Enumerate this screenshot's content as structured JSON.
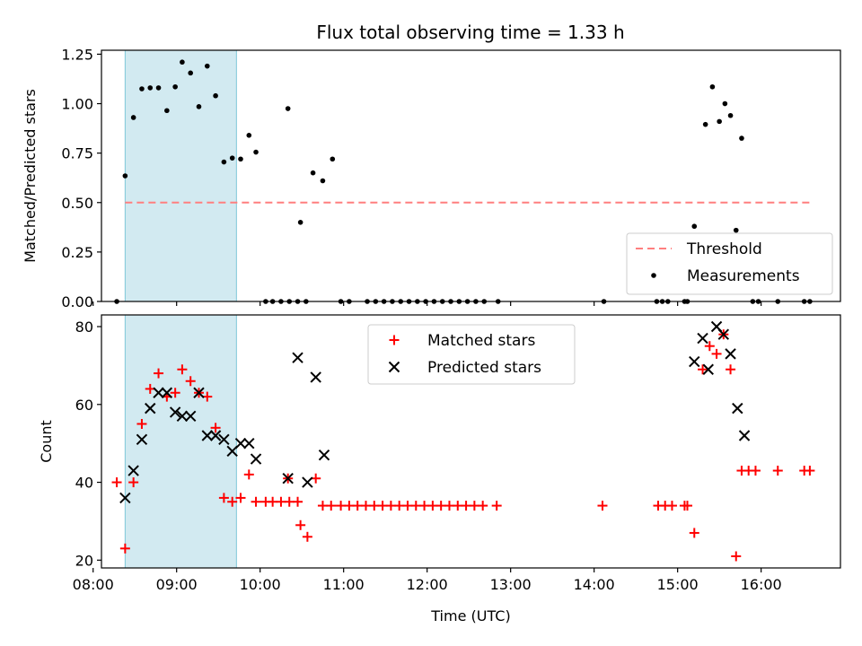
{
  "figure": {
    "title": "Flux total observing time = 1.33 h"
  },
  "chart_data": [
    {
      "type": "scatter",
      "panel": "top",
      "ylabel": "Matched/Predicted stars",
      "xlabel": "",
      "xlim": [
        "08:06",
        "16:57"
      ],
      "ylim": [
        0,
        1.27
      ],
      "yticks": [
        0.0,
        0.25,
        0.5,
        0.75,
        1.0,
        1.25
      ],
      "ytick_labels": [
        "0.00",
        "0.25",
        "0.50",
        "0.75",
        "1.00",
        "1.25"
      ],
      "grid": false,
      "legend_position": "lower right",
      "shaded_interval": {
        "start": "08:23",
        "end": "09:43",
        "color": "#add8e6"
      },
      "threshold": {
        "name": "Threshold",
        "value": 0.5,
        "x_start": "08:23",
        "x_end": "16:35",
        "color": "#ff7f7f",
        "style": "dashed"
      },
      "series": [
        {
          "name": "Measurements",
          "marker": "dot",
          "color": "#000000",
          "points": [
            [
              "08:17",
              0.0
            ],
            [
              "08:23",
              0.635
            ],
            [
              "08:29",
              0.93
            ],
            [
              "08:35",
              1.075
            ],
            [
              "08:41",
              1.08
            ],
            [
              "08:47",
              1.08
            ],
            [
              "08:53",
              0.965
            ],
            [
              "08:59",
              1.085
            ],
            [
              "09:04",
              1.21
            ],
            [
              "09:10",
              1.155
            ],
            [
              "09:16",
              0.985
            ],
            [
              "09:22",
              1.19
            ],
            [
              "09:28",
              1.04
            ],
            [
              "09:34",
              0.705
            ],
            [
              "09:40",
              0.725
            ],
            [
              "09:46",
              0.72
            ],
            [
              "09:52",
              0.84
            ],
            [
              "09:57",
              0.755
            ],
            [
              "10:04",
              0.0
            ],
            [
              "10:09",
              0.0
            ],
            [
              "10:15",
              0.0
            ],
            [
              "10:21",
              0.0
            ],
            [
              "10:27",
              0.0
            ],
            [
              "10:33",
              0.0
            ],
            [
              "10:20",
              0.975
            ],
            [
              "10:29",
              0.4
            ],
            [
              "10:38",
              0.65
            ],
            [
              "10:45",
              0.61
            ],
            [
              "10:52",
              0.72
            ],
            [
              "10:58",
              0.0
            ],
            [
              "11:04",
              0.0
            ],
            [
              "11:17",
              0.0
            ],
            [
              "11:23",
              0.0
            ],
            [
              "11:29",
              0.0
            ],
            [
              "11:35",
              0.0
            ],
            [
              "11:41",
              0.0
            ],
            [
              "11:47",
              0.0
            ],
            [
              "11:53",
              0.0
            ],
            [
              "11:59",
              0.0
            ],
            [
              "12:05",
              0.0
            ],
            [
              "12:11",
              0.0
            ],
            [
              "12:17",
              0.0
            ],
            [
              "12:23",
              0.0
            ],
            [
              "12:29",
              0.0
            ],
            [
              "12:35",
              0.0
            ],
            [
              "12:41",
              0.0
            ],
            [
              "12:51",
              0.0
            ],
            [
              "14:07",
              0.0
            ],
            [
              "14:45",
              0.0
            ],
            [
              "14:49",
              0.0
            ],
            [
              "14:53",
              0.0
            ],
            [
              "15:05",
              0.0
            ],
            [
              "15:07",
              0.0
            ],
            [
              "15:12",
              0.38
            ],
            [
              "15:20",
              0.895
            ],
            [
              "15:25",
              1.085
            ],
            [
              "15:30",
              0.91
            ],
            [
              "15:34",
              1.0
            ],
            [
              "15:38",
              0.94
            ],
            [
              "15:42",
              0.36
            ],
            [
              "15:46",
              0.825
            ],
            [
              "15:54",
              0.0
            ],
            [
              "15:58",
              0.0
            ],
            [
              "16:12",
              0.0
            ],
            [
              "16:31",
              0.0
            ],
            [
              "16:35",
              0.0
            ]
          ]
        }
      ]
    },
    {
      "type": "scatter",
      "panel": "bottom",
      "ylabel": "Count",
      "xlabel": "Time (UTC)",
      "xlim": [
        "08:06",
        "16:57"
      ],
      "ylim": [
        18,
        83
      ],
      "yticks": [
        20,
        40,
        60,
        80
      ],
      "xticks": [
        "08:00",
        "09:00",
        "10:00",
        "11:00",
        "12:00",
        "13:00",
        "14:00",
        "15:00",
        "16:00"
      ],
      "grid": false,
      "legend_position": "upper center",
      "shaded_interval": {
        "start": "08:23",
        "end": "09:43",
        "color": "#add8e6"
      },
      "series": [
        {
          "name": "Matched stars",
          "marker": "plus",
          "color": "#ff0000",
          "points": [
            [
              "08:17",
              40
            ],
            [
              "08:23",
              23
            ],
            [
              "08:29",
              40
            ],
            [
              "08:35",
              55
            ],
            [
              "08:41",
              64
            ],
            [
              "08:47",
              68
            ],
            [
              "08:53",
              62
            ],
            [
              "08:59",
              63
            ],
            [
              "09:04",
              69
            ],
            [
              "09:10",
              66
            ],
            [
              "09:16",
              63
            ],
            [
              "09:22",
              62
            ],
            [
              "09:28",
              54
            ],
            [
              "09:34",
              36
            ],
            [
              "09:40",
              35
            ],
            [
              "09:46",
              36
            ],
            [
              "09:52",
              42
            ],
            [
              "09:57",
              35
            ],
            [
              "10:04",
              35
            ],
            [
              "10:09",
              35
            ],
            [
              "10:15",
              35
            ],
            [
              "10:21",
              35
            ],
            [
              "10:27",
              35
            ],
            [
              "10:20",
              41
            ],
            [
              "10:29",
              29
            ],
            [
              "10:34",
              26
            ],
            [
              "10:40",
              41
            ],
            [
              "10:45",
              34
            ],
            [
              "10:51",
              34
            ],
            [
              "10:58",
              34
            ],
            [
              "11:04",
              34
            ],
            [
              "11:10",
              34
            ],
            [
              "11:16",
              34
            ],
            [
              "11:22",
              34
            ],
            [
              "11:28",
              34
            ],
            [
              "11:34",
              34
            ],
            [
              "11:40",
              34
            ],
            [
              "11:46",
              34
            ],
            [
              "11:52",
              34
            ],
            [
              "11:58",
              34
            ],
            [
              "12:04",
              34
            ],
            [
              "12:10",
              34
            ],
            [
              "12:16",
              34
            ],
            [
              "12:22",
              34
            ],
            [
              "12:28",
              34
            ],
            [
              "12:34",
              34
            ],
            [
              "12:40",
              34
            ],
            [
              "12:50",
              34
            ],
            [
              "14:06",
              34
            ],
            [
              "14:46",
              34
            ],
            [
              "14:51",
              34
            ],
            [
              "14:56",
              34
            ],
            [
              "15:05",
              34
            ],
            [
              "15:07",
              34
            ],
            [
              "15:12",
              27
            ],
            [
              "15:18",
              69
            ],
            [
              "15:23",
              75
            ],
            [
              "15:28",
              73
            ],
            [
              "15:33",
              78
            ],
            [
              "15:38",
              69
            ],
            [
              "15:42",
              21
            ],
            [
              "15:46",
              43
            ],
            [
              "15:51",
              43
            ],
            [
              "15:56",
              43
            ],
            [
              "16:12",
              43
            ],
            [
              "16:31",
              43
            ],
            [
              "16:35",
              43
            ]
          ]
        },
        {
          "name": "Predicted stars",
          "marker": "x",
          "color": "#000000",
          "points": [
            [
              "08:23",
              36
            ],
            [
              "08:29",
              43
            ],
            [
              "08:35",
              51
            ],
            [
              "08:41",
              59
            ],
            [
              "08:47",
              63
            ],
            [
              "08:53",
              63
            ],
            [
              "08:59",
              58
            ],
            [
              "09:04",
              57
            ],
            [
              "09:10",
              57
            ],
            [
              "09:16",
              63
            ],
            [
              "09:22",
              52
            ],
            [
              "09:28",
              52
            ],
            [
              "09:34",
              51
            ],
            [
              "09:40",
              48
            ],
            [
              "09:46",
              50
            ],
            [
              "09:52",
              50
            ],
            [
              "09:57",
              46
            ],
            [
              "10:20",
              41
            ],
            [
              "10:27",
              72
            ],
            [
              "10:34",
              40
            ],
            [
              "10:40",
              67
            ],
            [
              "10:46",
              47
            ],
            [
              "15:12",
              71
            ],
            [
              "15:18",
              77
            ],
            [
              "15:22",
              69
            ],
            [
              "15:28",
              80
            ],
            [
              "15:33",
              78
            ],
            [
              "15:38",
              73
            ],
            [
              "15:43",
              59
            ],
            [
              "15:48",
              52
            ]
          ]
        }
      ]
    }
  ]
}
